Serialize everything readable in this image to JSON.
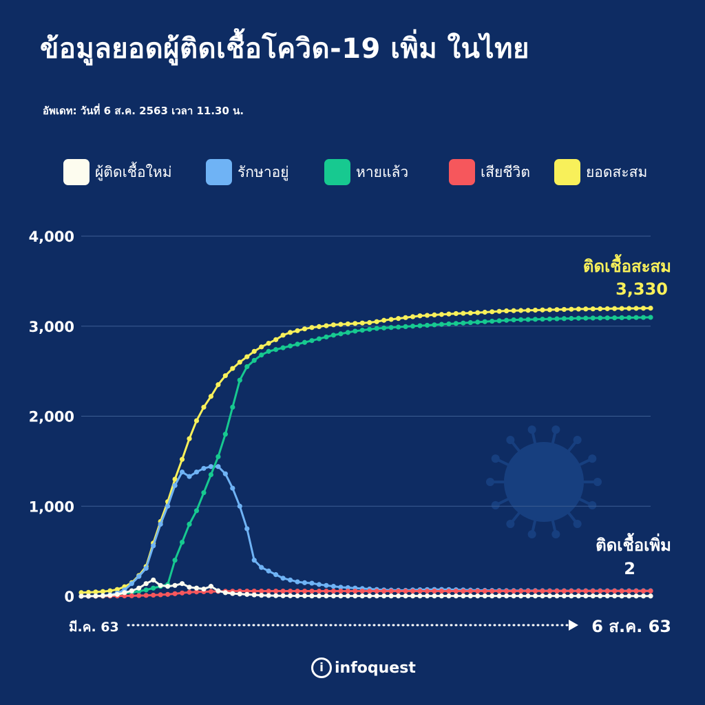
{
  "header": {
    "title": "ข้อมูลยอดผู้ติดเชื้อโควิด-19 เพิ่ม ในไทย",
    "subtitle": "อัพเดท: วันที่ 6 ส.ค. 2563 เวลา 11.30 น."
  },
  "legend": [
    {
      "label": "ผู้ติดเชื้อใหม่",
      "color": "#fdfcef"
    },
    {
      "label": "รักษาอยู่",
      "color": "#6fb3f5"
    },
    {
      "label": "หายแล้ว",
      "color": "#17c990"
    },
    {
      "label": "เสียชีวิต",
      "color": "#f6575c"
    },
    {
      "label": "ยอดสะสม",
      "color": "#f8f05a"
    }
  ],
  "annotations": {
    "total_label": "ติดเชื้อสะสม",
    "total_value": "3,330",
    "new_label": "ติดเชื้อเพิ่ม",
    "new_value": "2"
  },
  "footer": {
    "logo_text": "infoquest",
    "logo_mark": "i"
  },
  "chart_data": {
    "type": "line",
    "x_start_label": "มี.ค. 63",
    "x_end_label": "6 ส.ค. 63",
    "ylim": [
      0,
      4000
    ],
    "y_ticks": [
      "0",
      "1,000",
      "2,000",
      "3,000",
      "4,000"
    ],
    "grid": true,
    "legend_position": "top",
    "x": [
      0,
      2,
      4,
      6,
      8,
      10,
      12,
      14,
      16,
      18,
      20,
      22,
      24,
      26,
      28,
      30,
      32,
      34,
      36,
      38,
      40,
      42,
      44,
      46,
      48,
      50,
      52,
      54,
      56,
      58,
      60,
      62,
      64,
      66,
      68,
      70,
      72,
      74,
      76,
      78,
      80,
      82,
      84,
      86,
      88,
      90,
      92,
      94,
      96,
      98,
      100,
      102,
      104,
      106,
      108,
      110,
      112,
      114,
      116,
      118,
      120,
      122,
      124,
      126,
      128,
      130,
      132,
      134,
      136,
      138,
      140,
      142,
      144,
      146,
      148,
      150,
      152,
      154,
      156,
      158
    ],
    "series": [
      {
        "name": "ยอดสะสม",
        "color": "#f8f05a",
        "values": [
          40,
          43,
          47,
          52,
          60,
          75,
          105,
          150,
          230,
          330,
          590,
          830,
          1050,
          1300,
          1520,
          1750,
          1950,
          2100,
          2220,
          2350,
          2450,
          2530,
          2600,
          2660,
          2720,
          2770,
          2810,
          2850,
          2900,
          2930,
          2950,
          2970,
          2985,
          2995,
          3005,
          3015,
          3020,
          3025,
          3030,
          3035,
          3040,
          3050,
          3065,
          3075,
          3085,
          3095,
          3105,
          3115,
          3120,
          3125,
          3130,
          3135,
          3140,
          3143,
          3146,
          3150,
          3155,
          3160,
          3165,
          3170,
          3172,
          3174,
          3176,
          3178,
          3180,
          3182,
          3184,
          3186,
          3188,
          3190,
          3191,
          3192,
          3193,
          3194,
          3195,
          3196,
          3197,
          3198,
          3199,
          3200
        ]
      },
      {
        "name": "รักษาอยู่",
        "color": "#6fb3f5",
        "values": [
          0,
          0,
          2,
          5,
          15,
          35,
          70,
          140,
          220,
          310,
          560,
          800,
          1000,
          1230,
          1380,
          1330,
          1380,
          1420,
          1440,
          1440,
          1360,
          1200,
          1000,
          750,
          400,
          320,
          280,
          240,
          200,
          180,
          160,
          150,
          145,
          130,
          120,
          110,
          100,
          95,
          90,
          85,
          80,
          75,
          70,
          68,
          66,
          65,
          70,
          72,
          74,
          75,
          75,
          74,
          72,
          70,
          68,
          66,
          65,
          64,
          63,
          62,
          62,
          62,
          62,
          62,
          61,
          60,
          60,
          60,
          60,
          60,
          60,
          60,
          60,
          60,
          60,
          60,
          60,
          60,
          60,
          60
        ]
      },
      {
        "name": "หายแล้ว",
        "color": "#17c990",
        "values": [
          0,
          0,
          0,
          0,
          5,
          15,
          35,
          40,
          55,
          70,
          90,
          110,
          130,
          400,
          600,
          800,
          950,
          1150,
          1350,
          1550,
          1800,
          2100,
          2400,
          2550,
          2620,
          2680,
          2720,
          2740,
          2760,
          2780,
          2800,
          2820,
          2840,
          2860,
          2880,
          2900,
          2915,
          2930,
          2945,
          2955,
          2965,
          2975,
          2980,
          2985,
          2990,
          2995,
          3000,
          3005,
          3010,
          3015,
          3020,
          3025,
          3030,
          3035,
          3040,
          3045,
          3050,
          3055,
          3060,
          3065,
          3070,
          3072,
          3074,
          3076,
          3078,
          3080,
          3082,
          3084,
          3086,
          3088,
          3089,
          3090,
          3091,
          3092,
          3093,
          3094,
          3095,
          3096,
          3097,
          3098
        ]
      },
      {
        "name": "เสียชีวิต",
        "color": "#f6575c",
        "values": [
          0,
          0,
          0,
          1,
          2,
          3,
          4,
          5,
          7,
          9,
          12,
          16,
          20,
          28,
          36,
          44,
          48,
          50,
          52,
          54,
          55,
          56,
          57,
          57,
          57,
          57,
          57,
          57,
          57,
          57,
          57,
          57,
          57,
          57,
          57,
          57,
          57,
          57,
          57,
          57,
          57,
          57,
          57,
          57,
          57,
          57,
          57,
          57,
          57,
          57,
          57,
          57,
          57,
          57,
          57,
          57,
          57,
          57,
          57,
          57,
          57,
          58,
          58,
          58,
          58,
          58,
          58,
          58,
          58,
          58,
          58,
          58,
          58,
          58,
          58,
          58,
          58,
          58,
          58,
          58
        ]
      },
      {
        "name": "ผู้ติดเชื้อใหม่",
        "color": "#fdfcef",
        "values": [
          0,
          1,
          2,
          5,
          10,
          20,
          40,
          60,
          90,
          140,
          180,
          120,
          110,
          120,
          140,
          100,
          90,
          80,
          110,
          60,
          40,
          30,
          25,
          20,
          15,
          10,
          8,
          6,
          5,
          5,
          4,
          4,
          3,
          3,
          3,
          3,
          3,
          3,
          3,
          3,
          3,
          3,
          3,
          3,
          3,
          3,
          3,
          3,
          3,
          3,
          3,
          3,
          3,
          3,
          3,
          3,
          3,
          3,
          3,
          3,
          3,
          3,
          3,
          3,
          3,
          3,
          3,
          3,
          3,
          3,
          3,
          3,
          3,
          3,
          3,
          2,
          2,
          2,
          2,
          2
        ]
      }
    ]
  }
}
